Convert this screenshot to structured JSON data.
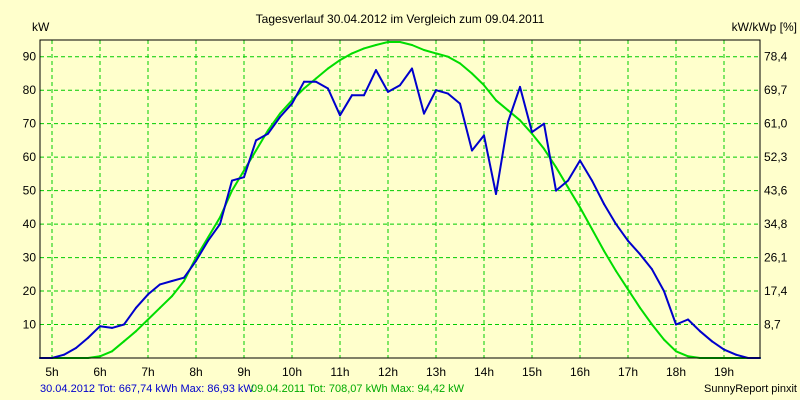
{
  "chart_data": {
    "type": "line",
    "title": "Tagesverlauf 30.04.2012 im Vergleich zum 09.04.2011",
    "ylabel": "kW",
    "y2label": "kW/kWp [%]",
    "ylim": [
      0,
      95
    ],
    "y2lim": [
      0,
      82.8
    ],
    "xlim": [
      4.75,
      19.75
    ],
    "grid": true,
    "xticks": [
      "5h",
      "6h",
      "7h",
      "8h",
      "9h",
      "10h",
      "11h",
      "12h",
      "13h",
      "14h",
      "15h",
      "16h",
      "17h",
      "18h",
      "19h"
    ],
    "yticks": [
      "10",
      "20",
      "30",
      "40",
      "50",
      "60",
      "70",
      "80",
      "90"
    ],
    "y2ticks": [
      "8,7",
      "17,4",
      "26,1",
      "34,8",
      "43,6",
      "52,3",
      "61,0",
      "69,7",
      "78,4"
    ],
    "series": [
      {
        "name": "30.04.2012 Tot: 667,74 kWh Max: 86,93 kW",
        "color": "#0000cc",
        "x": [
          4.75,
          5.0,
          5.25,
          5.5,
          5.75,
          6.0,
          6.25,
          6.5,
          6.75,
          7.0,
          7.25,
          7.5,
          7.75,
          8.0,
          8.25,
          8.5,
          8.75,
          9.0,
          9.25,
          9.5,
          9.75,
          10.0,
          10.25,
          10.5,
          10.75,
          11.0,
          11.25,
          11.5,
          11.75,
          12.0,
          12.25,
          12.5,
          12.75,
          13.0,
          13.25,
          13.5,
          13.75,
          14.0,
          14.25,
          14.5,
          14.75,
          15.0,
          15.25,
          15.5,
          15.75,
          16.0,
          16.25,
          16.5,
          16.75,
          17.0,
          17.25,
          17.5,
          17.75,
          18.0,
          18.25,
          18.5,
          18.75,
          19.0,
          19.25,
          19.5,
          19.75
        ],
        "values": [
          0,
          0,
          1,
          3,
          6,
          9.5,
          9,
          10,
          15,
          19,
          22,
          23,
          24,
          29,
          35,
          40,
          53,
          54,
          65,
          67,
          72,
          76,
          82.5,
          82.5,
          80.5,
          72.5,
          78.5,
          78.5,
          86,
          79.5,
          81.5,
          86.5,
          73,
          80,
          79,
          76,
          62,
          66.5,
          49,
          70.5,
          81,
          67.5,
          70,
          50,
          53,
          59,
          53,
          46,
          40,
          35,
          31,
          26.5,
          20,
          10,
          11.5,
          8,
          5,
          2.5,
          1,
          0,
          0
        ]
      },
      {
        "name": "09.04.2011 Tot: 708,07 kWh Max: 94,42 kW",
        "color": "#00dd00",
        "x": [
          4.75,
          5.0,
          5.25,
          5.5,
          5.75,
          6.0,
          6.25,
          6.5,
          6.75,
          7.0,
          7.25,
          7.5,
          7.75,
          8.0,
          8.25,
          8.5,
          8.75,
          9.0,
          9.25,
          9.5,
          9.75,
          10.0,
          10.25,
          10.5,
          10.75,
          11.0,
          11.25,
          11.5,
          11.75,
          12.0,
          12.25,
          12.5,
          12.75,
          13.0,
          13.25,
          13.5,
          13.75,
          14.0,
          14.25,
          14.5,
          14.75,
          15.0,
          15.25,
          15.5,
          15.75,
          16.0,
          16.25,
          16.5,
          16.75,
          17.0,
          17.25,
          17.5,
          17.75,
          18.0,
          18.25,
          18.5,
          18.75,
          19.0,
          19.25,
          19.5,
          19.75
        ],
        "values": [
          0,
          0,
          0,
          0,
          0,
          0.5,
          2,
          5,
          8,
          11.5,
          15,
          18.5,
          23,
          30,
          36,
          42,
          50,
          56,
          62,
          68,
          73,
          77,
          80.5,
          83.5,
          86.5,
          89,
          91,
          92.5,
          93.5,
          94.4,
          94.4,
          93.5,
          92,
          91,
          90,
          88,
          85,
          81.5,
          77,
          74,
          71,
          67,
          62.5,
          57,
          51,
          45,
          38.5,
          32,
          26,
          20.5,
          15,
          10,
          5.5,
          2,
          0.5,
          0,
          0,
          0,
          0,
          0,
          0
        ]
      }
    ]
  },
  "footer": {
    "legend1": "30.04.2012 Tot: 667,74 kWh Max: 86,93 kW",
    "legend2": "09.04.2011 Tot: 708,07 kWh Max: 94,42 kW",
    "credit": "SunnyReport pinxit"
  },
  "colors": {
    "background": "#ffffcc",
    "grid": "#00cc00",
    "series1": "#0000cc",
    "series2": "#00dd00"
  }
}
